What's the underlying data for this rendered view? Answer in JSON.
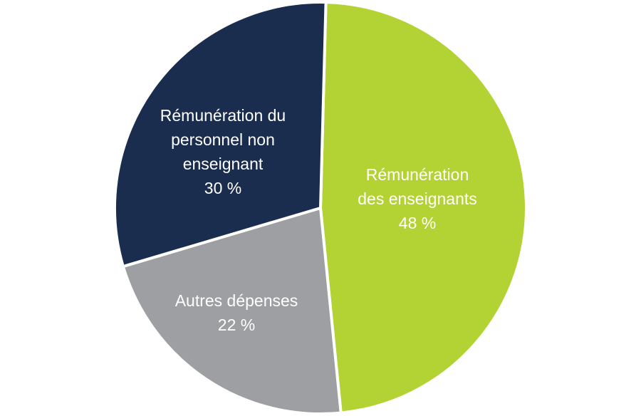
{
  "chart_data": {
    "type": "pie",
    "slices": [
      {
        "label_lines": [
          "Rémunération",
          "des enseignants"
        ],
        "value": 48,
        "value_label": "48 %",
        "color": "#b3d334"
      },
      {
        "label_lines": [
          "Autres dépenses"
        ],
        "value": 22,
        "value_label": "22 %",
        "color": "#9d9fa2"
      },
      {
        "label_lines": [
          "Rémunération du",
          "personnel non",
          "enseignant"
        ],
        "value": 30,
        "value_label": "30 %",
        "color": "#1a2d4e"
      }
    ],
    "start_angle_deg": 1.5,
    "direction": "clockwise"
  }
}
